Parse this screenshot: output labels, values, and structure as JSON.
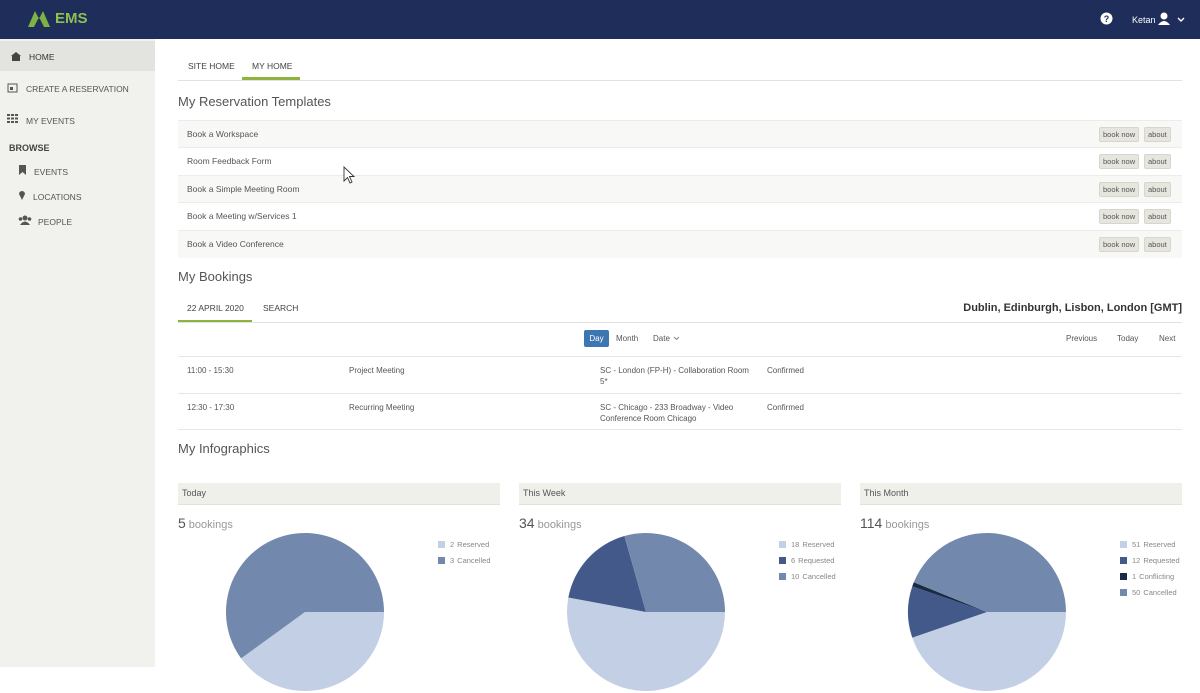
{
  "header": {
    "logo": "EMS",
    "user": "Ketan"
  },
  "sidebar": {
    "items": [
      "HOME",
      "CREATE A RESERVATION",
      "MY EVENTS"
    ],
    "browse": "BROWSE",
    "browse_items": [
      "EVENTS",
      "LOCATIONS",
      "PEOPLE"
    ]
  },
  "tabs": [
    "SITE HOME",
    "MY HOME"
  ],
  "templates": {
    "title": "My Reservation Templates",
    "rows": [
      "Book a Workspace",
      "Room Feedback Form",
      "Book a Simple Meeting Room",
      "Book a Meeting w/Services 1",
      "Book a Video Conference"
    ],
    "book": "book now",
    "about": "about"
  },
  "bookings": {
    "title": "My Bookings",
    "tabs": [
      "22 APRIL 2020",
      "SEARCH"
    ],
    "timezone": "Dublin, Edinburgh, Lisbon, London [GMT]",
    "views": [
      "Day",
      "Month",
      "Date"
    ],
    "nav": [
      "Previous",
      "Today",
      "Next"
    ],
    "rows": [
      {
        "time": "11:00 - 15:30",
        "name": "Project Meeting",
        "location": "SC - London (FP-H) - Collaboration Room 5*",
        "status": "Confirmed"
      },
      {
        "time": "12:30 - 17:30",
        "name": "Recurring Meeting",
        "location": "SC - Chicago - 233 Broadway - Video Conference Room Chicago",
        "status": "Confirmed"
      }
    ]
  },
  "infographics": {
    "title": "My Infographics",
    "unit": "bookings",
    "charts": [
      {
        "type": "pie",
        "title": "Today",
        "total": 5,
        "categories": [
          "Reserved",
          "Cancelled"
        ],
        "values": [
          2,
          3
        ],
        "colors": [
          "#c3cfe4",
          "#7388ad"
        ]
      },
      {
        "type": "pie",
        "title": "This Week",
        "total": 34,
        "categories": [
          "Reserved",
          "Requested",
          "Cancelled"
        ],
        "values": [
          18,
          6,
          10
        ],
        "colors": [
          "#c3cfe4",
          "#42598a",
          "#7388ad"
        ]
      },
      {
        "type": "pie",
        "title": "This Month",
        "total": 114,
        "categories": [
          "Reserved",
          "Requested",
          "Conflicting",
          "Cancelled"
        ],
        "values": [
          51,
          12,
          1,
          50
        ],
        "colors": [
          "#c3cfe4",
          "#42598a",
          "#1b2a45",
          "#7388ad"
        ]
      }
    ]
  }
}
